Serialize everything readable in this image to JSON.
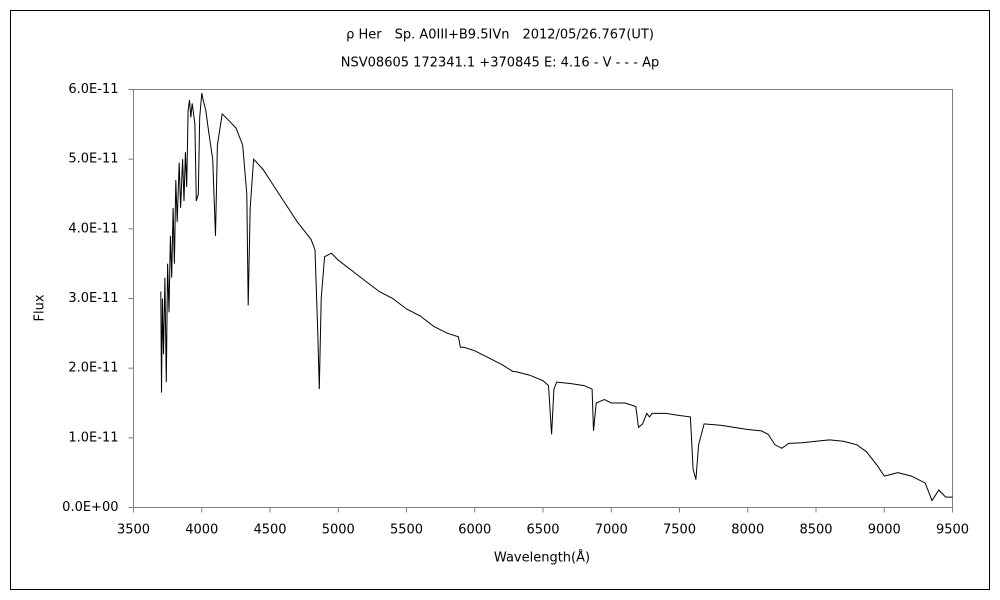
{
  "chart_data": {
    "type": "line",
    "title": "ρ Her　Sp. A0III+B9.5IVn　2012/05/26.767(UT)",
    "subtitle": "NSV08605 172341.1 +370845 E: 4.16 - V - - - Ap",
    "x_label": "Wavelength(Å)",
    "y_label": "Flux",
    "color": "#000000",
    "grid": false,
    "xlim": [
      3500,
      9500
    ],
    "xticks": [
      3500,
      4000,
      4500,
      5000,
      5500,
      6000,
      6500,
      7000,
      7500,
      8000,
      8500,
      9000,
      9500
    ],
    "ylim": [
      0,
      6e-11
    ],
    "yticks": [
      {
        "value": 0,
        "label": "0.0E+00"
      },
      {
        "value": 1e-11,
        "label": "1.0E-11"
      },
      {
        "value": 2e-11,
        "label": "2.0E-11"
      },
      {
        "value": 3e-11,
        "label": "3.0E-11"
      },
      {
        "value": 4e-11,
        "label": "4.0E-11"
      },
      {
        "value": 5e-11,
        "label": "5.0E-11"
      },
      {
        "value": 6e-11,
        "label": "6.0E-11"
      }
    ],
    "x": [
      3700,
      3705,
      3712,
      3720,
      3730,
      3740,
      3750,
      3760,
      3770,
      3780,
      3790,
      3800,
      3810,
      3820,
      3835,
      3845,
      3860,
      3870,
      3880,
      3890,
      3900,
      3910,
      3920,
      3930,
      3950,
      3960,
      3975,
      3985,
      4000,
      4010,
      4030,
      4050,
      4080,
      4101,
      4115,
      4150,
      4200,
      4250,
      4300,
      4330,
      4340,
      4355,
      4380,
      4450,
      4500,
      4600,
      4700,
      4800,
      4830,
      4850,
      4861,
      4875,
      4900,
      4950,
      5000,
      5100,
      5200,
      5300,
      5400,
      5500,
      5600,
      5700,
      5800,
      5880,
      5895,
      5920,
      6000,
      6100,
      6200,
      6280,
      6300,
      6400,
      6500,
      6540,
      6563,
      6580,
      6600,
      6700,
      6800,
      6860,
      6870,
      6890,
      6950,
      7000,
      7100,
      7180,
      7200,
      7230,
      7260,
      7280,
      7300,
      7400,
      7500,
      7580,
      7600,
      7620,
      7640,
      7680,
      7800,
      7900,
      8000,
      8100,
      8150,
      8200,
      8250,
      8300,
      8400,
      8500,
      8600,
      8700,
      8800,
      8870,
      8950,
      9000,
      9100,
      9200,
      9300,
      9350,
      9400,
      9450,
      9500
    ],
    "values": [
      3.1e-11,
      1.65e-11,
      3e-11,
      2.2e-11,
      3.3e-11,
      1.8e-11,
      3.5e-11,
      2.8e-11,
      3.9e-11,
      3.3e-11,
      4.3e-11,
      3.5e-11,
      4.7e-11,
      4.1e-11,
      4.95e-11,
      4.3e-11,
      5e-11,
      4.4e-11,
      5.1e-11,
      4.6e-11,
      5.7e-11,
      5.85e-11,
      5.6e-11,
      5.8e-11,
      5.5e-11,
      4.4e-11,
      4.5e-11,
      5.6e-11,
      5.95e-11,
      5.85e-11,
      5.7e-11,
      5.4e-11,
      5e-11,
      3.9e-11,
      5.2e-11,
      5.65e-11,
      5.55e-11,
      5.45e-11,
      5.2e-11,
      4.5e-11,
      2.9e-11,
      4.3e-11,
      5e-11,
      4.85e-11,
      4.7e-11,
      4.4e-11,
      4.1e-11,
      3.85e-11,
      3.7e-11,
      2.5e-11,
      1.7e-11,
      3e-11,
      3.6e-11,
      3.65e-11,
      3.55e-11,
      3.4e-11,
      3.25e-11,
      3.1e-11,
      3e-11,
      2.85e-11,
      2.75e-11,
      2.6e-11,
      2.5e-11,
      2.45e-11,
      2.3e-11,
      2.3e-11,
      2.25e-11,
      2.15e-11,
      2.05e-11,
      1.95e-11,
      1.95e-11,
      1.9e-11,
      1.82e-11,
      1.75e-11,
      1.05e-11,
      1.7e-11,
      1.8e-11,
      1.78e-11,
      1.75e-11,
      1.7e-11,
      1.1e-11,
      1.5e-11,
      1.55e-11,
      1.5e-11,
      1.5e-11,
      1.45e-11,
      1.15e-11,
      1.2e-11,
      1.35e-11,
      1.3e-11,
      1.35e-11,
      1.35e-11,
      1.32e-11,
      1.3e-11,
      5.5e-12,
      4e-12,
      9e-12,
      1.2e-11,
      1.18e-11,
      1.15e-11,
      1.12e-11,
      1.1e-11,
      1.05e-11,
      9e-12,
      8.5e-12,
      9.2e-12,
      9.3e-12,
      9.5e-12,
      9.7e-12,
      9.5e-12,
      9e-12,
      8e-12,
      6e-12,
      4.5e-12,
      5e-12,
      4.5e-12,
      3.5e-12,
      1e-12,
      2.5e-12,
      1.5e-12,
      1.5e-12
    ]
  }
}
